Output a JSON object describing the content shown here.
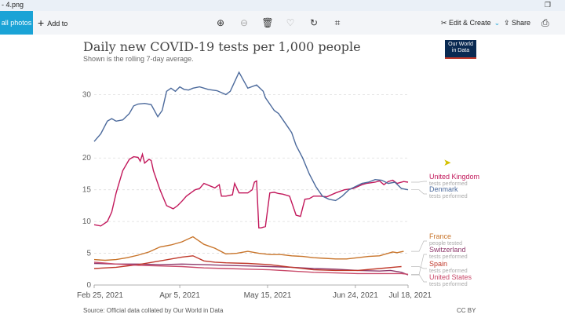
{
  "window": {
    "title": "- 4.png",
    "restore_icon": "restore-icon"
  },
  "toolbar": {
    "all_photos": "all photos",
    "add_to": "Add to",
    "icons": [
      "zoom-in-icon",
      "zoom-out-icon",
      "delete-icon",
      "heart-icon",
      "rotate-icon",
      "crop-icon"
    ],
    "edit_create": "Edit & Create",
    "share": "Share"
  },
  "chart_header": {
    "title": "Daily new COVID-19 tests per 1,000 people",
    "subtitle": "Shown is the rolling 7-day average.",
    "logo_line1": "Our World",
    "logo_line2": "in Data",
    "source": "Source: Official data collated by Our World in Data",
    "license": "CC BY"
  },
  "chart_data": {
    "type": "line",
    "title": "Daily new COVID-19 tests per 1,000 people",
    "subtitle": "Shown is the rolling 7-day average.",
    "x_ticks": [
      "Feb 25, 2021",
      "Apr 5, 2021",
      "May 15, 2021",
      "Jun 24, 2021",
      "Jul 18, 2021"
    ],
    "x_tick_day": [
      0,
      39,
      79,
      119,
      143
    ],
    "xlim": [
      0,
      143
    ],
    "ylim": [
      0,
      34
    ],
    "y_ticks": [
      0,
      5,
      10,
      15,
      20,
      30
    ],
    "grid": "horizontal dashed",
    "legend": "right",
    "series": [
      {
        "name": "United Kingdom",
        "sub": "tests performed",
        "color": "#c2185b",
        "x": [
          0,
          3,
          6,
          8,
          10,
          13,
          16,
          18,
          20,
          21,
          22,
          23,
          25,
          26,
          27,
          28,
          30,
          33,
          36,
          38,
          40,
          42,
          44,
          46,
          48,
          50,
          55,
          57,
          58,
          60,
          63,
          64,
          66,
          70,
          72,
          73,
          74,
          75,
          76,
          78,
          80,
          82,
          84,
          86,
          89,
          92,
          94,
          96,
          98,
          100,
          103,
          106,
          110,
          114,
          118,
          122,
          124,
          126,
          128,
          130,
          132,
          134,
          136,
          138,
          141,
          143
        ],
        "y": [
          9.5,
          9.3,
          10,
          11.5,
          14.5,
          18,
          19.8,
          20.2,
          20.1,
          19.5,
          20.6,
          19.2,
          19.8,
          19.6,
          18,
          17,
          15,
          12.5,
          12,
          12.5,
          13.2,
          14,
          14.5,
          15,
          15.2,
          16,
          15.3,
          15.8,
          14,
          14,
          14.2,
          16,
          14.5,
          14.5,
          15,
          16.2,
          16.4,
          9,
          9,
          9.2,
          14.5,
          14.6,
          14.4,
          14.3,
          14,
          11,
          10.8,
          13.5,
          13.6,
          14,
          14,
          13.9,
          14.5,
          15,
          15.2,
          15.8,
          16,
          16.1,
          16.2,
          16.4,
          15.8,
          16.3,
          16.5,
          16,
          16.3,
          16.2
        ]
      },
      {
        "name": "Denmark",
        "sub": "tests performed",
        "color": "#4c6a9c",
        "x": [
          0,
          3,
          6,
          8,
          10,
          13,
          16,
          18,
          20,
          23,
          26,
          29,
          31,
          33,
          35,
          37,
          39,
          41,
          43,
          45,
          48,
          52,
          56,
          60,
          62,
          64,
          66,
          70,
          74,
          77,
          78,
          80,
          82,
          84,
          86,
          88,
          90,
          92,
          95,
          98,
          101,
          104,
          107,
          110,
          113,
          116,
          119,
          122,
          125,
          128,
          131,
          134,
          137,
          140,
          143
        ],
        "y": [
          22.6,
          23.8,
          25.8,
          26.2,
          25.8,
          26,
          27,
          28.2,
          28.5,
          28.6,
          28.4,
          26.5,
          27.5,
          30.5,
          31,
          30.5,
          31.2,
          30.8,
          30.7,
          31,
          31.2,
          30.8,
          30.6,
          30,
          30.5,
          32,
          33.5,
          31,
          31.5,
          30.5,
          29.5,
          28.5,
          27.5,
          27,
          26,
          25,
          24,
          22,
          20,
          17.5,
          15.5,
          14,
          13.5,
          13.3,
          14,
          15,
          15.5,
          16,
          16.2,
          16.6,
          16.5,
          16,
          16.2,
          15.2,
          15
        ]
      },
      {
        "name": "France",
        "sub": "people tested",
        "color": "#c8742a",
        "x": [
          0,
          5,
          10,
          15,
          20,
          25,
          30,
          35,
          40,
          45,
          50,
          55,
          60,
          65,
          70,
          75,
          80,
          85,
          90,
          95,
          100,
          105,
          110,
          115,
          120,
          125,
          130,
          134,
          136,
          138,
          141
        ],
        "y": [
          4,
          3.9,
          4,
          4.3,
          4.7,
          5.2,
          6,
          6.3,
          6.8,
          7.6,
          6.4,
          5.8,
          4.9,
          5,
          5.3,
          5,
          4.8,
          4.8,
          4.6,
          4.5,
          4.3,
          4.2,
          4.1,
          4.1,
          4.3,
          4.5,
          4.6,
          5,
          5.2,
          5.1,
          5.3
        ]
      },
      {
        "name": "Switzerland",
        "sub": "tests performed",
        "color": "#8e3a6c",
        "x": [
          0,
          10,
          20,
          30,
          40,
          50,
          60,
          70,
          80,
          90,
          100,
          110,
          120,
          130,
          135,
          140,
          143
        ],
        "y": [
          3.4,
          3.3,
          3.3,
          3.2,
          3.3,
          3.2,
          3.1,
          3,
          2.9,
          2.8,
          2.6,
          2.5,
          2.3,
          2.2,
          2.3,
          2,
          1.6
        ]
      },
      {
        "name": "Spain",
        "sub": "tests performed",
        "color": "#c0392b",
        "x": [
          0,
          10,
          20,
          30,
          40,
          45,
          50,
          55,
          60,
          70,
          80,
          90,
          100,
          110,
          120,
          130,
          140
        ],
        "y": [
          2.6,
          2.8,
          3.2,
          3.8,
          4.4,
          4.6,
          3.8,
          3.6,
          3.5,
          3.4,
          3.2,
          2.8,
          2.4,
          2.3,
          2.3,
          2.6,
          2.9
        ]
      },
      {
        "name": "United States",
        "sub": "tests performed",
        "color": "#c94a6a",
        "x": [
          0,
          10,
          20,
          30,
          40,
          50,
          60,
          70,
          80,
          90,
          100,
          110,
          120,
          130,
          140,
          143
        ],
        "y": [
          3.6,
          3.3,
          3.1,
          3.0,
          2.9,
          2.7,
          2.6,
          2.5,
          2.4,
          2.2,
          2.0,
          1.9,
          1.8,
          1.8,
          1.8,
          1.7
        ]
      }
    ]
  }
}
